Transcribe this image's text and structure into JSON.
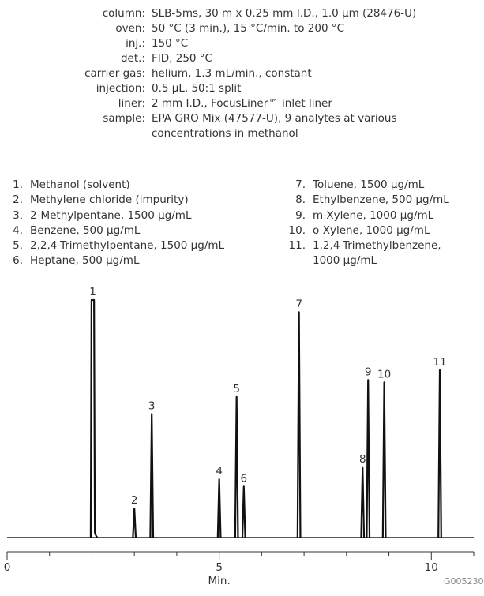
{
  "conditions": [
    {
      "label": "column:",
      "value": "SLB-5ms, 30 m x 0.25 mm I.D., 1.0 µm (28476-U)"
    },
    {
      "label": "oven:",
      "value": "50 °C (3 min.), 15 °C/min. to 200 °C"
    },
    {
      "label": "inj.:",
      "value": "150 °C"
    },
    {
      "label": "det.:",
      "value": "FID, 250 °C"
    },
    {
      "label": "carrier gas:",
      "value": "helium, 1.3 mL/min., constant"
    },
    {
      "label": "injection:",
      "value": "0.5 µL, 50:1 split"
    },
    {
      "label": "liner:",
      "value": "2 mm I.D., FocusLiner™ inlet liner"
    },
    {
      "label": "sample:",
      "value": "EPA GRO Mix (47577-U), 9 analytes at various"
    },
    {
      "label": "",
      "value": "concentrations in methanol"
    }
  ],
  "analytes_left": [
    {
      "num": "1.",
      "name": "Methanol (solvent)"
    },
    {
      "num": "2.",
      "name": "Methylene chloride (impurity)"
    },
    {
      "num": "3.",
      "name": "2-Methylpentane, 1500 µg/mL"
    },
    {
      "num": "4.",
      "name": "Benzene, 500 µg/mL"
    },
    {
      "num": "5.",
      "name": "2,2,4-Trimethylpentane, 1500 µg/mL"
    },
    {
      "num": "6.",
      "name": "Heptane, 500 µg/mL"
    }
  ],
  "analytes_right": [
    {
      "num": "7.",
      "name": "Toluene, 1500 µg/mL"
    },
    {
      "num": "8.",
      "name": "Ethylbenzene, 500 µg/mL"
    },
    {
      "num": "9.",
      "name": "m-Xylene, 1000 µg/mL"
    },
    {
      "num": "10.",
      "name": "o-Xylene, 1000 µg/mL"
    },
    {
      "num": "11.",
      "name": "1,2,4-Trimethylbenzene,"
    },
    {
      "num": "",
      "name": "1000 µg/mL"
    }
  ],
  "chart_data": {
    "type": "line",
    "title": "",
    "xlabel": "Min.",
    "ylabel": "",
    "xlim": [
      0,
      11.0
    ],
    "ylim": [
      0,
      100
    ],
    "x_ticks": [
      0,
      5,
      10
    ],
    "x_tick_labels": [
      "0",
      "5",
      "10"
    ],
    "minor_tick_step": 1,
    "grid": false,
    "baseline": 2,
    "peaks": [
      {
        "label": "1",
        "time": 2.02,
        "height": 100,
        "width": 0.06,
        "tail": 0.12
      },
      {
        "label": "2",
        "time": 3.0,
        "height": 14
      },
      {
        "label": "3",
        "time": 3.41,
        "height": 53
      },
      {
        "label": "4",
        "time": 5.0,
        "height": 26
      },
      {
        "label": "5",
        "time": 5.41,
        "height": 60
      },
      {
        "label": "6",
        "time": 5.58,
        "height": 23
      },
      {
        "label": "7",
        "time": 6.88,
        "height": 95
      },
      {
        "label": "8",
        "time": 8.38,
        "height": 31
      },
      {
        "label": "9",
        "time": 8.51,
        "height": 67
      },
      {
        "label": "10",
        "time": 8.89,
        "height": 66
      },
      {
        "label": "11",
        "time": 10.2,
        "height": 71
      }
    ]
  },
  "figure_code": "G005230"
}
